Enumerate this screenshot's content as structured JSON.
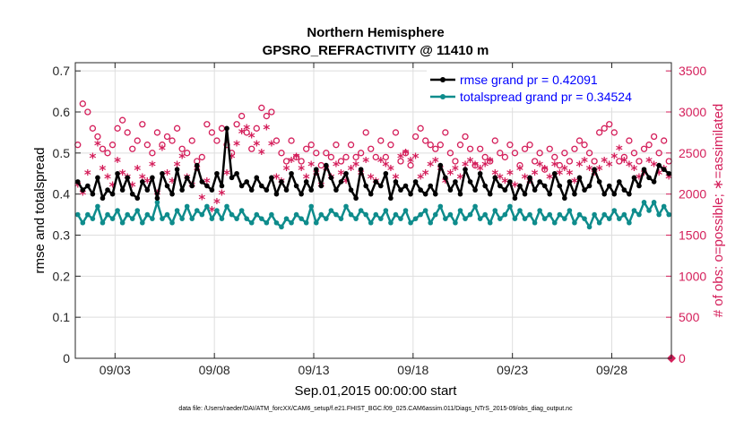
{
  "colors": {
    "rmse": "#000000",
    "spread": "#0e8c8c",
    "obs": "#d41e5a",
    "legend_text": "#0000ff"
  },
  "chart_data": {
    "type": "line",
    "title": "Northern Hemisphere",
    "subtitle": "GPSRO_REFRACTIVITY @ 11410 m",
    "xlabel": "Sep.01,2015 00:00:00 start",
    "ylabel": "rmse and totalspread",
    "y2label": "# of obs: o=possible; ∗=assimilated",
    "footnote": "data file: /Users/raeder/DAI/ATM_forcXX/CAM6_setup/f.e21.FHIST_BGC.f09_025.CAM6assim.011/Diags_NTrS_2015-09/obs_diag_output.nc",
    "xlim": [
      0.5,
      30.5
    ],
    "ylim": [
      0,
      0.72
    ],
    "y2lim": [
      0,
      3600
    ],
    "xticks": [
      2.5,
      7.5,
      12.5,
      17.5,
      22.5,
      27.5
    ],
    "xtick_labels": [
      "09/03",
      "09/08",
      "09/13",
      "09/18",
      "09/23",
      "09/28"
    ],
    "yticks": [
      0,
      0.1,
      0.2,
      0.3,
      0.4,
      0.5,
      0.6,
      0.7
    ],
    "ytick_labels": [
      "0",
      "0.1",
      "0.2",
      "0.3",
      "0.4",
      "0.5",
      "0.6",
      "0.7"
    ],
    "y2ticks": [
      0,
      500,
      1000,
      1500,
      2000,
      2500,
      3000,
      3500
    ],
    "y2tick_labels": [
      "0",
      "500",
      "1000",
      "1500",
      "2000",
      "2500",
      "3000",
      "3500"
    ],
    "legend": {
      "position": "top-right",
      "entries": [
        "rmse grand pr = 0.42091",
        "totalspread grand pr = 0.34524"
      ]
    },
    "x": [
      0.625,
      0.875,
      1.125,
      1.375,
      1.625,
      1.875,
      2.125,
      2.375,
      2.625,
      2.875,
      3.125,
      3.375,
      3.625,
      3.875,
      4.125,
      4.375,
      4.625,
      4.875,
      5.125,
      5.375,
      5.625,
      5.875,
      6.125,
      6.375,
      6.625,
      6.875,
      7.125,
      7.375,
      7.625,
      7.875,
      8.125,
      8.375,
      8.625,
      8.875,
      9.125,
      9.375,
      9.625,
      9.875,
      10.125,
      10.375,
      10.625,
      10.875,
      11.125,
      11.375,
      11.625,
      11.875,
      12.125,
      12.375,
      12.625,
      12.875,
      13.125,
      13.375,
      13.625,
      13.875,
      14.125,
      14.375,
      14.625,
      14.875,
      15.125,
      15.375,
      15.625,
      15.875,
      16.125,
      16.375,
      16.625,
      16.875,
      17.125,
      17.375,
      17.625,
      17.875,
      18.125,
      18.375,
      18.625,
      18.875,
      19.125,
      19.375,
      19.625,
      19.875,
      20.125,
      20.375,
      20.625,
      20.875,
      21.125,
      21.375,
      21.625,
      21.875,
      22.125,
      22.375,
      22.625,
      22.875,
      23.125,
      23.375,
      23.625,
      23.875,
      24.125,
      24.375,
      24.625,
      24.875,
      25.125,
      25.375,
      25.625,
      25.875,
      26.125,
      26.375,
      26.625,
      26.875,
      27.125,
      27.375,
      27.625,
      27.875,
      28.125,
      28.375,
      28.625,
      28.875,
      29.125,
      29.375,
      29.625,
      29.875,
      30.125,
      30.375
    ],
    "series": [
      {
        "name": "rmse",
        "values": [
          0.43,
          0.41,
          0.42,
          0.4,
          0.44,
          0.39,
          0.41,
          0.4,
          0.45,
          0.41,
          0.44,
          0.4,
          0.39,
          0.43,
          0.41,
          0.44,
          0.39,
          0.45,
          0.42,
          0.4,
          0.46,
          0.41,
          0.44,
          0.42,
          0.47,
          0.43,
          0.42,
          0.41,
          0.45,
          0.42,
          0.56,
          0.44,
          0.45,
          0.42,
          0.43,
          0.41,
          0.44,
          0.42,
          0.41,
          0.44,
          0.4,
          0.43,
          0.41,
          0.45,
          0.42,
          0.4,
          0.43,
          0.41,
          0.46,
          0.42,
          0.47,
          0.44,
          0.41,
          0.43,
          0.45,
          0.41,
          0.39,
          0.46,
          0.42,
          0.4,
          0.43,
          0.42,
          0.45,
          0.39,
          0.43,
          0.41,
          0.42,
          0.4,
          0.43,
          0.41,
          0.4,
          0.42,
          0.4,
          0.47,
          0.44,
          0.41,
          0.43,
          0.4,
          0.46,
          0.43,
          0.41,
          0.45,
          0.42,
          0.4,
          0.44,
          0.42,
          0.41,
          0.43,
          0.39,
          0.42,
          0.4,
          0.44,
          0.41,
          0.43,
          0.42,
          0.4,
          0.45,
          0.42,
          0.39,
          0.43,
          0.4,
          0.44,
          0.41,
          0.42,
          0.46,
          0.43,
          0.4,
          0.42,
          0.4,
          0.43,
          0.41,
          0.4,
          0.44,
          0.42,
          0.46,
          0.44,
          0.43,
          0.47,
          0.46,
          0.45
        ]
      },
      {
        "name": "totalspread",
        "values": [
          0.35,
          0.33,
          0.35,
          0.34,
          0.37,
          0.33,
          0.35,
          0.34,
          0.36,
          0.33,
          0.35,
          0.34,
          0.36,
          0.33,
          0.35,
          0.34,
          0.38,
          0.34,
          0.35,
          0.33,
          0.36,
          0.34,
          0.37,
          0.34,
          0.36,
          0.35,
          0.37,
          0.34,
          0.36,
          0.34,
          0.37,
          0.35,
          0.34,
          0.36,
          0.34,
          0.33,
          0.35,
          0.34,
          0.33,
          0.35,
          0.33,
          0.32,
          0.34,
          0.33,
          0.35,
          0.34,
          0.33,
          0.37,
          0.33,
          0.35,
          0.34,
          0.36,
          0.35,
          0.34,
          0.37,
          0.35,
          0.34,
          0.36,
          0.35,
          0.33,
          0.35,
          0.34,
          0.36,
          0.33,
          0.35,
          0.34,
          0.36,
          0.33,
          0.34,
          0.35,
          0.36,
          0.33,
          0.35,
          0.37,
          0.34,
          0.35,
          0.33,
          0.36,
          0.34,
          0.35,
          0.37,
          0.34,
          0.35,
          0.33,
          0.36,
          0.34,
          0.35,
          0.37,
          0.34,
          0.36,
          0.34,
          0.35,
          0.33,
          0.36,
          0.34,
          0.35,
          0.33,
          0.35,
          0.34,
          0.36,
          0.33,
          0.35,
          0.34,
          0.32,
          0.35,
          0.33,
          0.35,
          0.34,
          0.36,
          0.34,
          0.35,
          0.33,
          0.36,
          0.35,
          0.38,
          0.36,
          0.38,
          0.35,
          0.37,
          0.35
        ]
      },
      {
        "name": "obs_possible",
        "axis": "right",
        "values": [
          2600,
          3100,
          3000,
          2800,
          2700,
          2550,
          2500,
          2600,
          2800,
          2900,
          2750,
          2550,
          2650,
          2850,
          2600,
          2500,
          2750,
          2600,
          2700,
          2650,
          2800,
          2550,
          2500,
          2650,
          2400,
          2450,
          2850,
          2750,
          2650,
          2800,
          2600,
          2500,
          2850,
          2950,
          2750,
          2550,
          2800,
          3050,
          2950,
          3000,
          2650,
          2500,
          2400,
          2650,
          2450,
          2400,
          2550,
          2600,
          2500,
          2350,
          2500,
          2450,
          2600,
          2400,
          2450,
          2600,
          2450,
          2500,
          2750,
          2550,
          2450,
          2650,
          2450,
          2600,
          2750,
          2400,
          2500,
          2350,
          2700,
          2800,
          2650,
          2600,
          2550,
          2600,
          2750,
          2500,
          2400,
          2600,
          2700,
          2550,
          2350,
          2550,
          2450,
          2400,
          2650,
          2500,
          2450,
          2600,
          2500,
          2350,
          2550,
          2600,
          2400,
          2500,
          2300,
          2550,
          2450,
          2350,
          2500,
          2400,
          2550,
          2650,
          2600,
          2500,
          2400,
          2750,
          2800,
          2850,
          2750,
          2400,
          2450,
          2650,
          2500,
          2400,
          2550,
          2600,
          2700,
          2500,
          2650,
          2400
        ]
      },
      {
        "name": "obs_assimilated",
        "axis": "right",
        "values": [
          2100,
          2000,
          2250,
          2450,
          2600,
          2300,
          2200,
          2100,
          2400,
          2250,
          2200,
          2100,
          2300,
          2200,
          2150,
          2350,
          2000,
          2550,
          2250,
          2150,
          2350,
          2450,
          2200,
          2100,
          2300,
          1950,
          2150,
          1800,
          1900,
          2000,
          2250,
          2450,
          2600,
          2750,
          2800,
          2700,
          2600,
          2500,
          2800,
          2600,
          2200,
          2150,
          2300,
          2400,
          2450,
          2300,
          2200,
          2350,
          2250,
          2100,
          2300,
          2200,
          2350,
          2250,
          2150,
          2300,
          2350,
          2250,
          2400,
          2200,
          2150,
          2400,
          2350,
          2300,
          2200,
          2450,
          2500,
          2400,
          2450,
          2200,
          2250,
          2350,
          2400,
          2300,
          2150,
          2250,
          2300,
          2200,
          2350,
          2400,
          2350,
          2300,
          2350,
          2400,
          2250,
          2200,
          2150,
          2250,
          2100,
          2300,
          2200,
          2150,
          2250,
          2350,
          2300,
          2200,
          2350,
          2250,
          2300,
          2250,
          2150,
          2350,
          2400,
          2300,
          2250,
          2300,
          2400,
          2350,
          2450,
          2550,
          2400,
          2350,
          2300,
          2200,
          2250,
          2400,
          2350,
          2250,
          2300,
          2200
        ]
      }
    ],
    "zero_marker_x": 30.5,
    "zero_marker_value": 0
  }
}
